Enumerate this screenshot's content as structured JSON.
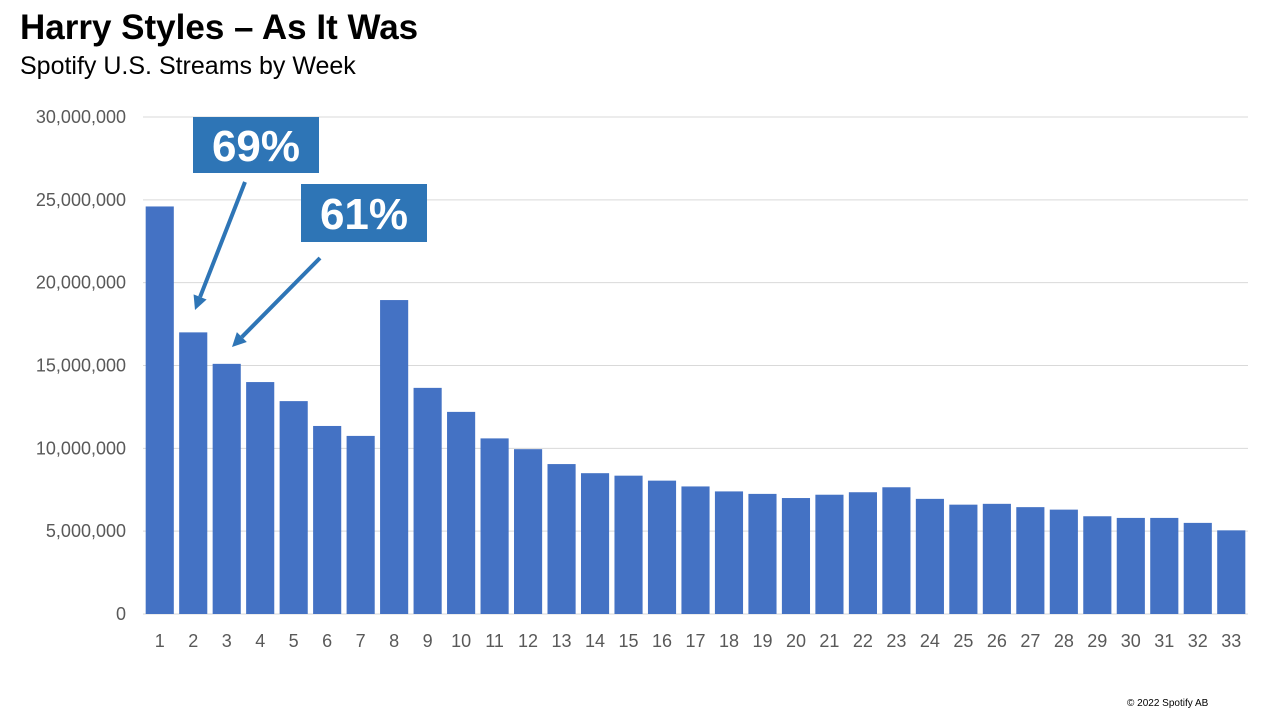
{
  "chart_data": {
    "type": "bar",
    "title": "Harry Styles – As It Was",
    "subtitle": "Spotify U.S. Streams by Week",
    "xlabel": "",
    "ylabel": "",
    "ylim": [
      0,
      30000000
    ],
    "yticks": [
      "0",
      "5,000,000",
      "10,000,000",
      "15,000,000",
      "20,000,000",
      "25,000,000",
      "30,000,000"
    ],
    "grid": true,
    "categories": [
      "1",
      "2",
      "3",
      "4",
      "5",
      "6",
      "7",
      "8",
      "9",
      "10",
      "11",
      "12",
      "13",
      "14",
      "15",
      "16",
      "17",
      "18",
      "19",
      "20",
      "21",
      "22",
      "23",
      "24",
      "25",
      "26",
      "27",
      "28",
      "29",
      "30",
      "31",
      "32",
      "33"
    ],
    "values": [
      24600000,
      17000000,
      15100000,
      14000000,
      12850000,
      11350000,
      10750000,
      18950000,
      13650000,
      12200000,
      10600000,
      9950000,
      9050000,
      8500000,
      8350000,
      8050000,
      7700000,
      7400000,
      7250000,
      7000000,
      7200000,
      7350000,
      7650000,
      6950000,
      6600000,
      6650000,
      6450000,
      6300000,
      5900000,
      5800000,
      5800000,
      5500000,
      5050000
    ],
    "bar_color": "#4472C4",
    "annotations": [
      {
        "text": "69%",
        "target_category": "2"
      },
      {
        "text": "61%",
        "target_category": "3"
      }
    ],
    "annotation_color": "#2E75B6"
  },
  "footer": {
    "copyright": "© 2022 Spotify AB"
  }
}
